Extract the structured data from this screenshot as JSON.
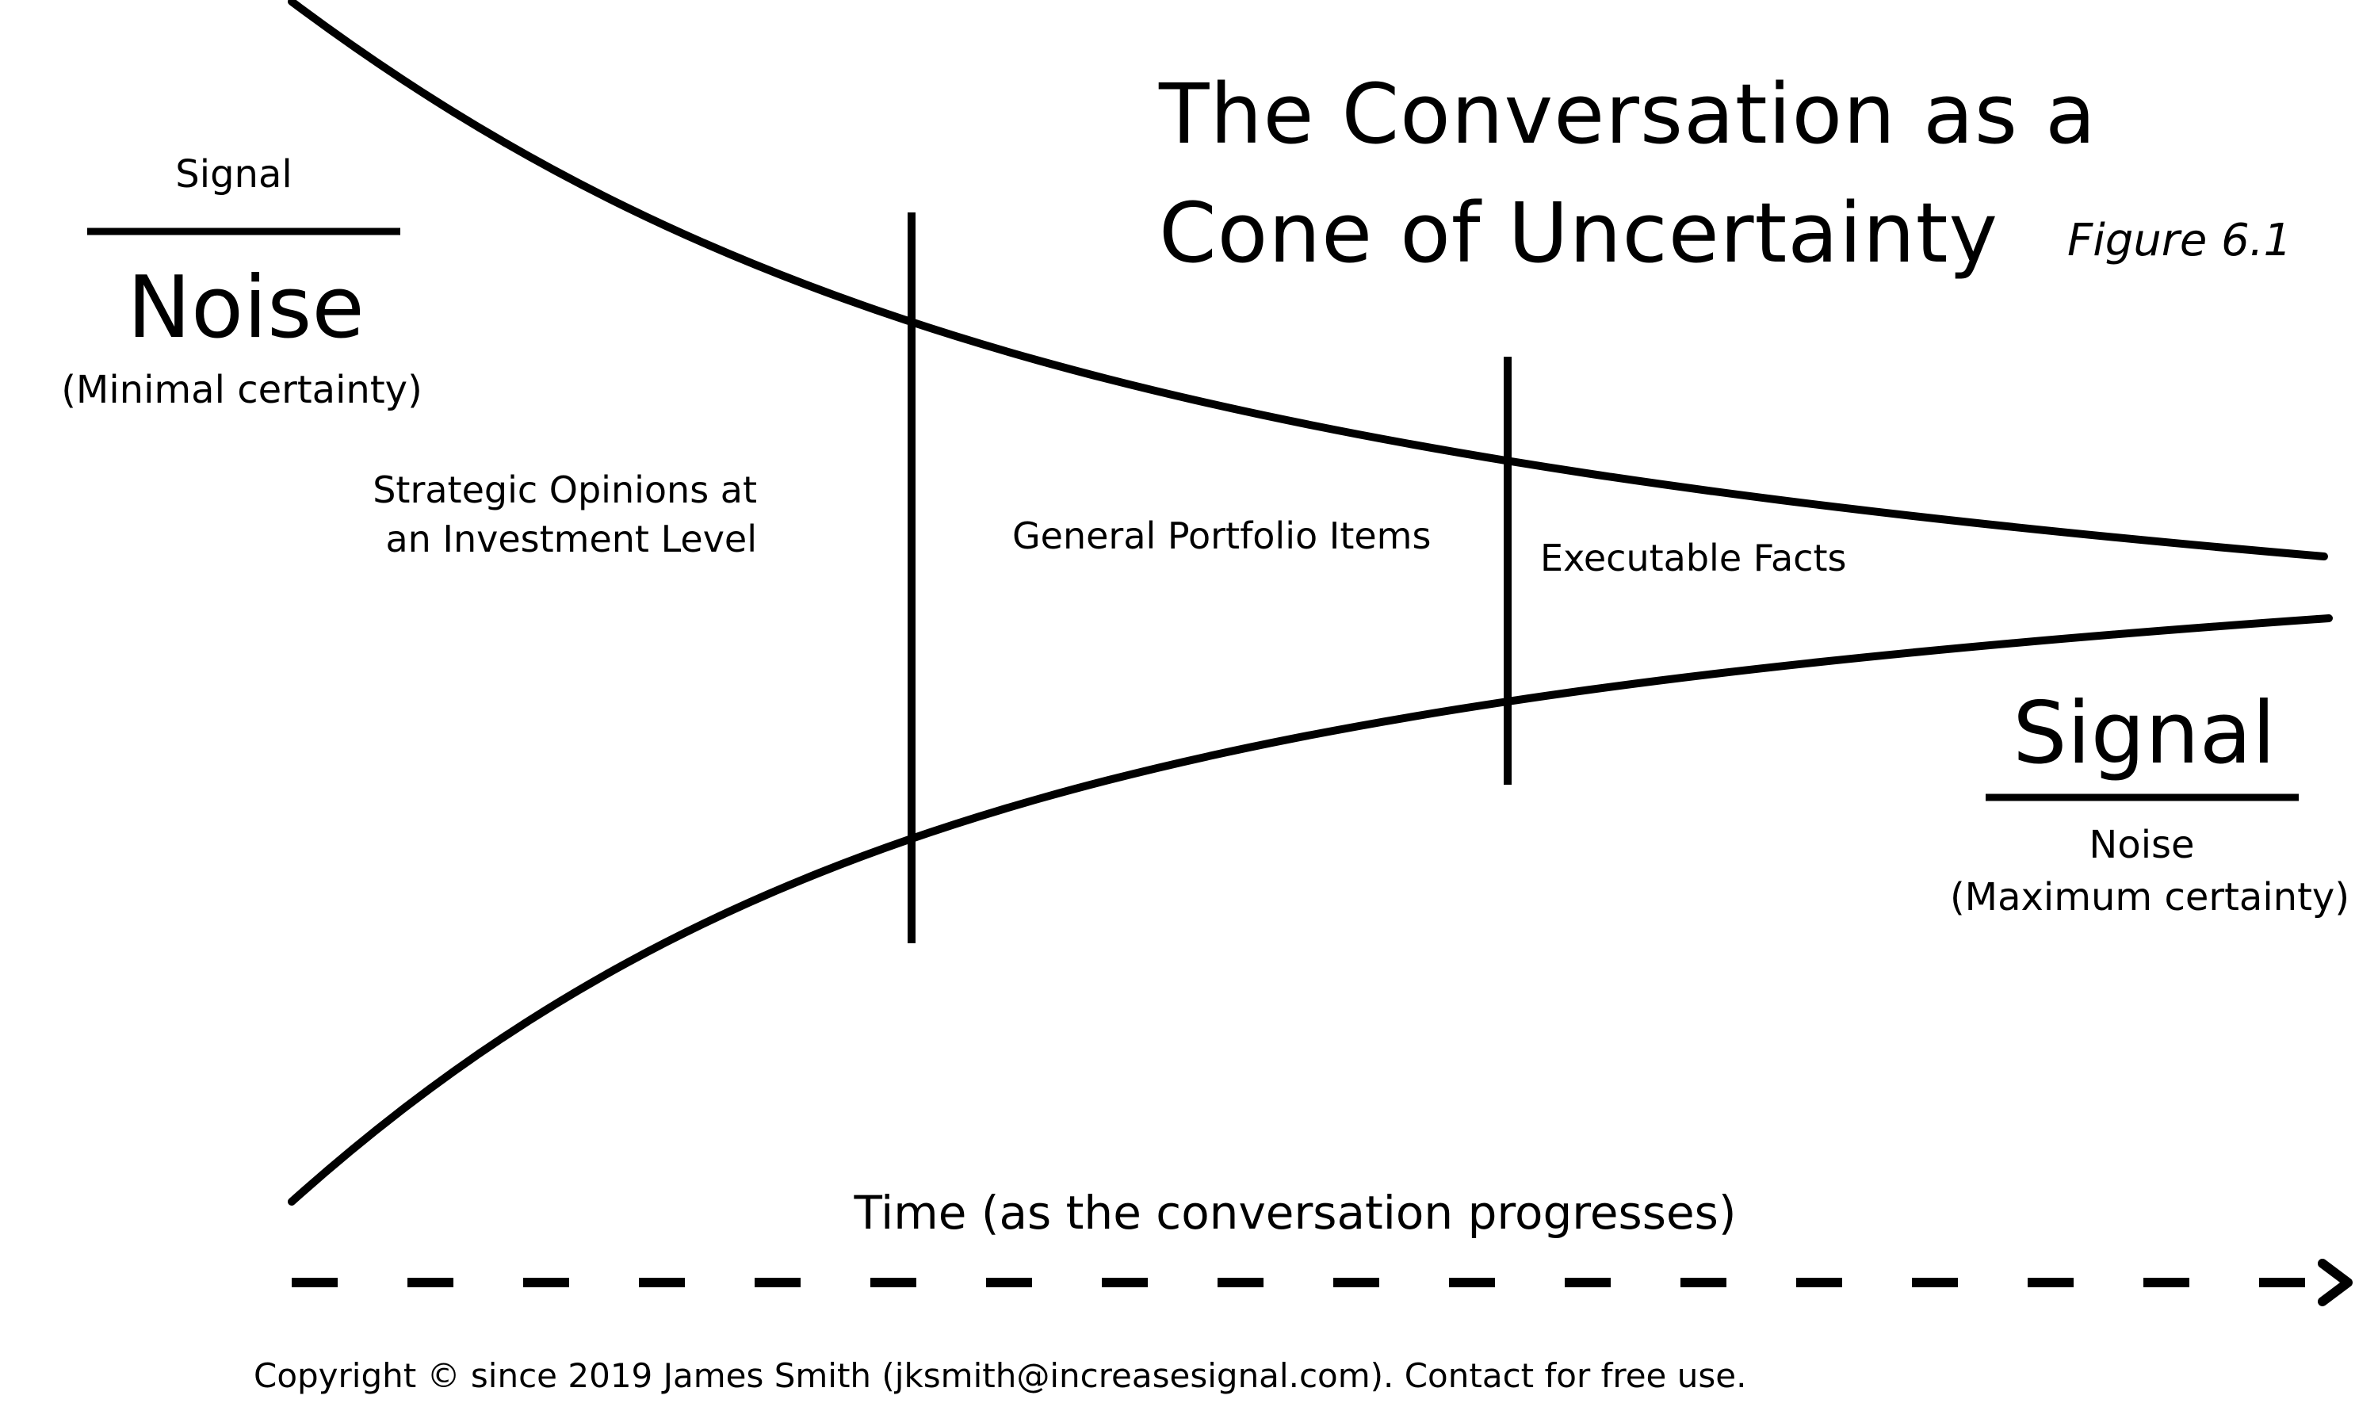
{
  "title": {
    "line1": "The Conversation as a",
    "line2": "Cone of Uncertainty",
    "figure": "Figure 6.1"
  },
  "left_ratio": {
    "numerator": "Signal",
    "denominator": "Noise",
    "note": "(Minimal certainty)"
  },
  "right_ratio": {
    "numerator": "Signal",
    "denominator": "Noise",
    "note": "(Maximum certainty)"
  },
  "regions": {
    "strategic_line1": "Strategic Opinions at",
    "strategic_line2": "an Investment Level",
    "portfolio": "General Portfolio Items",
    "executable": "Executable Facts"
  },
  "time_axis": {
    "label": "Time (as the conversation progresses)"
  },
  "copyright": "Copyright © since 2019 James Smith (jksmith@increasesignal.com). Contact for free use."
}
